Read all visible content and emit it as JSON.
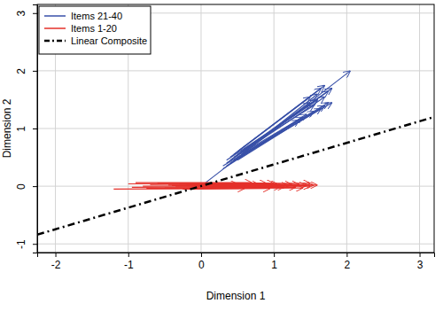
{
  "chart_data": {
    "type": "arrow",
    "x_label": "Dimension 1",
    "y_label": "Dimension 2",
    "xlim": [
      -2.25,
      3.2
    ],
    "ylim": [
      -1.15,
      3.15
    ],
    "xticks": [
      -2,
      -1,
      0,
      1,
      2,
      3
    ],
    "yticks": [
      -1,
      0,
      1,
      2,
      3
    ],
    "grid": true,
    "legend": "top-left",
    "series": [
      {
        "name": "Items 21-40",
        "color": "#3850a8",
        "type": "arrow",
        "marker": "arrow",
        "line_style": "solid",
        "x0": [
          0.0,
          0.4,
          0.45,
          0.35,
          0.5,
          0.3,
          0.55,
          0.4,
          0.5,
          0.45,
          0.35,
          0.6,
          0.5,
          0.55,
          0.4,
          0.45,
          0.3,
          0.5,
          0.6,
          0.35
        ],
        "y0": [
          0.0,
          0.45,
          0.5,
          0.4,
          0.55,
          0.35,
          0.6,
          0.4,
          0.5,
          0.45,
          0.35,
          0.6,
          0.45,
          0.55,
          0.5,
          0.55,
          0.3,
          0.6,
          0.65,
          0.45
        ],
        "x1": [
          2.05,
          1.8,
          1.75,
          1.7,
          1.6,
          1.75,
          1.5,
          1.65,
          1.55,
          1.8,
          1.45,
          1.4,
          1.7,
          1.6,
          1.65,
          1.5,
          1.35,
          1.7,
          1.55,
          1.6
        ],
        "y1": [
          2.0,
          1.7,
          1.65,
          1.55,
          1.5,
          1.45,
          1.45,
          1.35,
          1.3,
          1.45,
          1.25,
          1.2,
          1.4,
          1.6,
          1.7,
          1.55,
          1.15,
          1.75,
          1.4,
          1.5
        ]
      },
      {
        "name": "Items 1-20",
        "color": "#e4302a",
        "type": "arrow",
        "marker": "arrow",
        "line_style": "solid",
        "x0": [
          -1.2,
          -1.0,
          -0.95,
          -0.9,
          -0.8,
          -0.75,
          -0.7,
          -0.6,
          -0.5,
          -0.45,
          -0.4,
          -0.35,
          -0.3,
          -0.25,
          -0.2,
          -0.1,
          -0.05,
          0.0,
          0.1,
          0.2
        ],
        "y0": [
          -0.05,
          0.04,
          -0.02,
          0.06,
          0.0,
          -0.04,
          0.03,
          0.05,
          -0.03,
          0.02,
          0.01,
          -0.01,
          0.04,
          -0.05,
          0.03,
          0.0,
          0.02,
          -0.02,
          0.01,
          0.05
        ],
        "x1": [
          0.6,
          0.9,
          1.1,
          0.7,
          1.2,
          1.4,
          0.5,
          1.0,
          1.3,
          0.8,
          1.6,
          1.5,
          1.05,
          0.95,
          1.25,
          1.45,
          1.35,
          1.15,
          1.55,
          1.5
        ],
        "y1": [
          -0.04,
          0.05,
          -0.01,
          0.06,
          0.01,
          -0.03,
          0.04,
          0.05,
          -0.02,
          0.03,
          0.02,
          0.0,
          0.04,
          -0.04,
          0.03,
          0.01,
          0.03,
          -0.01,
          0.02,
          0.05
        ]
      },
      {
        "name": "Linear Composite",
        "color": "#000000",
        "type": "line",
        "line_style": "dashdot",
        "x": [
          -2.25,
          3.2
        ],
        "y": [
          -0.84,
          1.2
        ]
      }
    ]
  }
}
